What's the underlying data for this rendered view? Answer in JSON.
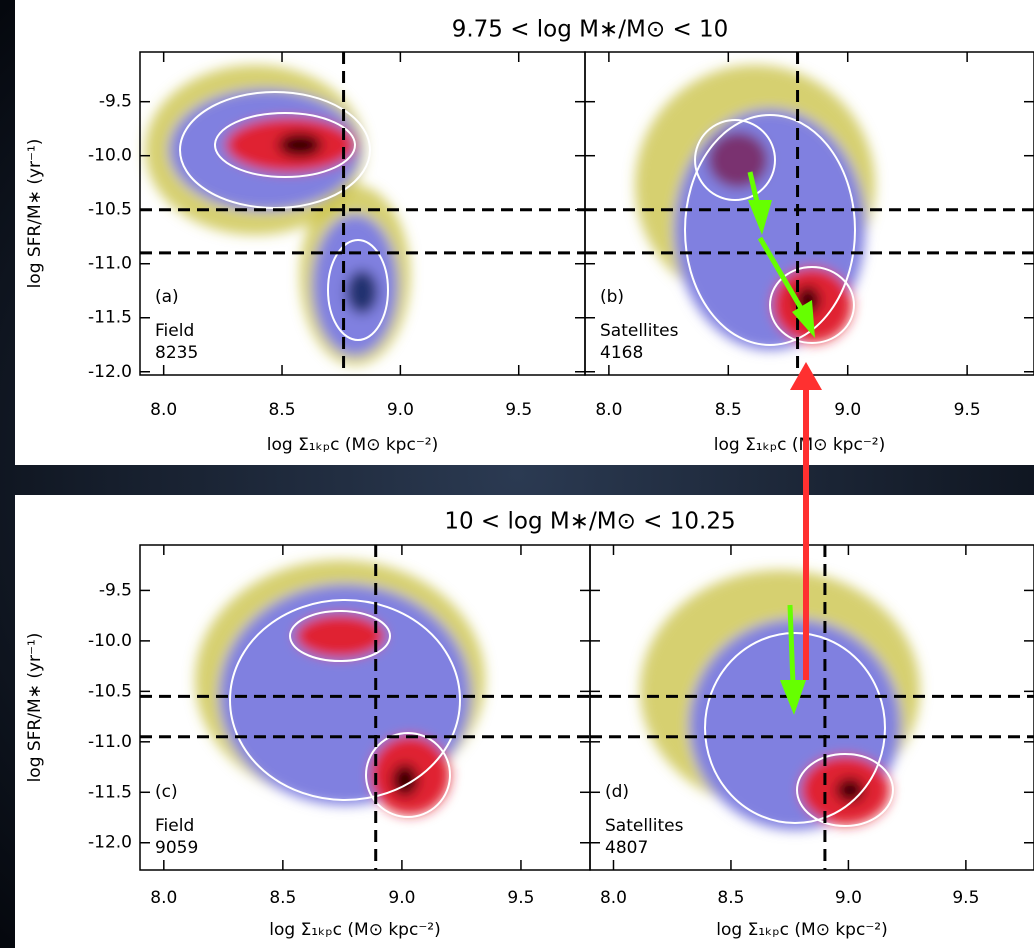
{
  "chart_data": [
    {
      "type": "density",
      "title": "9.75 < log M∗/M⊙ < 10",
      "x_label": "log Σ₁ₖₚc (M⊙ kpc⁻²)",
      "y_label": "log SFR/M∗ (yr⁻¹)",
      "xlim": [
        7.9,
        9.78
      ],
      "ylim": [
        -12.03,
        -9.04
      ],
      "xticks": [
        {
          "value": 8,
          "label": "8.0"
        },
        8.5,
        {
          "value": 9,
          "label": "9.0"
        },
        9.5
      ],
      "yticks": [
        -9.5,
        {
          "value": -10,
          "label": "-10.0"
        },
        -10.5,
        {
          "value": -11,
          "label": "-11.0"
        },
        -11.5,
        {
          "value": -12,
          "label": "-12.0"
        }
      ],
      "panels": [
        {
          "label": "(a)",
          "sample": "Field",
          "count": 8235,
          "vline": 8.76,
          "hlines": [
            -10.5,
            -10.9
          ]
        },
        {
          "label": "(b)",
          "sample": "Satellites",
          "count": 4168,
          "vline": 8.79,
          "hlines": [
            -10.5,
            -10.9
          ]
        }
      ]
    },
    {
      "type": "density",
      "title": "10 < log M∗/M⊙ < 10.25",
      "x_label": "log Σ₁ₖₚc (M⊙ kpc⁻²)",
      "y_label": "log SFR/M∗ (yr⁻¹)",
      "xlim": [
        7.9,
        9.79
      ],
      "ylim": [
        -12.27,
        -9.05
      ],
      "xticks": [
        {
          "value": 8,
          "label": "8.0"
        },
        8.5,
        {
          "value": 9,
          "label": "9.0"
        },
        9.5
      ],
      "yticks": [
        -9.5,
        {
          "value": -10,
          "label": "-10.0"
        },
        -10.5,
        {
          "value": -11,
          "label": "-11.0"
        },
        -11.5,
        {
          "value": -12,
          "label": "-12.0"
        }
      ],
      "panels": [
        {
          "label": "(c)",
          "sample": "Field",
          "count": 9059,
          "vline": 8.89,
          "hlines": [
            -10.55,
            -10.95
          ]
        },
        {
          "label": "(d)",
          "sample": "Satellites",
          "count": 4807,
          "vline": 8.9,
          "hlines": [
            -10.55,
            -10.95
          ]
        }
      ]
    }
  ]
}
